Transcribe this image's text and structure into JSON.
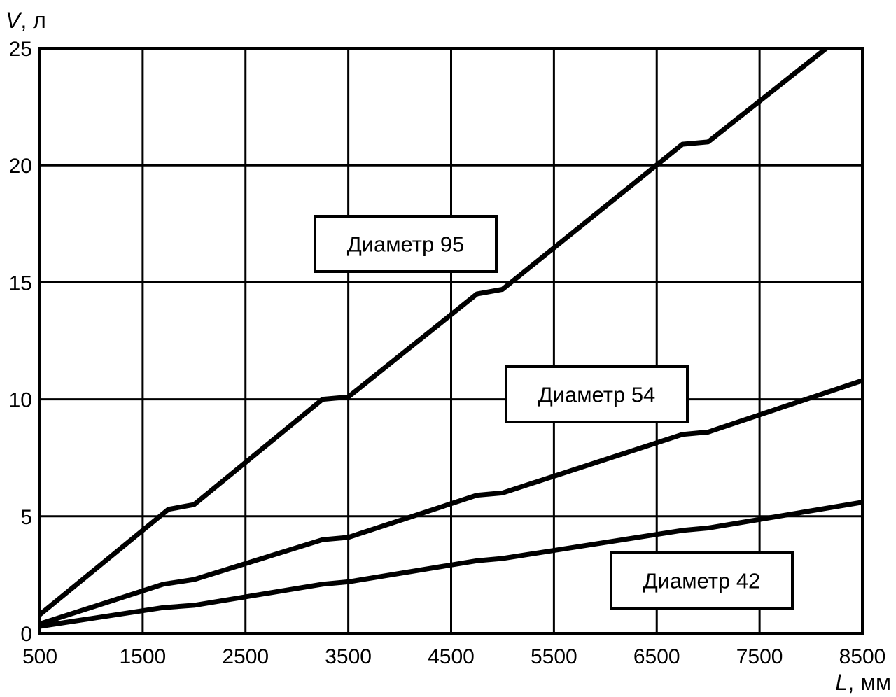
{
  "chart_data": {
    "type": "line",
    "title": "",
    "xlabel": {
      "symbol": "L",
      "unit": ", мм"
    },
    "ylabel": {
      "symbol": "V",
      "unit": ", л"
    },
    "xlim": [
      500,
      8500
    ],
    "ylim": [
      0,
      25
    ],
    "x_ticks": [
      500,
      1500,
      2500,
      3500,
      4500,
      5500,
      6500,
      7500,
      8500
    ],
    "y_ticks": [
      0,
      5,
      10,
      15,
      20,
      25
    ],
    "grid": true,
    "series": [
      {
        "name": "Диаметр 95",
        "x": [
          500,
          1750,
          2000,
          3250,
          3500,
          4750,
          5000,
          6750,
          7000,
          8150
        ],
        "y": [
          0.8,
          5.3,
          5.5,
          10.0,
          10.1,
          14.5,
          14.7,
          20.9,
          21.0,
          25.0
        ]
      },
      {
        "name": "Диаметр 54",
        "x": [
          500,
          1700,
          2000,
          3250,
          3500,
          4750,
          5000,
          6750,
          7000,
          8500
        ],
        "y": [
          0.4,
          2.1,
          2.3,
          4.0,
          4.1,
          5.9,
          6.0,
          8.5,
          8.6,
          10.8
        ]
      },
      {
        "name": "Диаметр 42",
        "x": [
          500,
          1700,
          2000,
          3250,
          3500,
          4750,
          5000,
          6750,
          7000,
          8500
        ],
        "y": [
          0.3,
          1.1,
          1.2,
          2.1,
          2.2,
          3.1,
          3.2,
          4.4,
          4.5,
          5.6
        ]
      }
    ],
    "annotations": [
      {
        "text": "Диаметр 95",
        "series": 0
      },
      {
        "text": "Диаметр 54",
        "series": 1
      },
      {
        "text": "Диаметр 42",
        "series": 2
      }
    ]
  }
}
